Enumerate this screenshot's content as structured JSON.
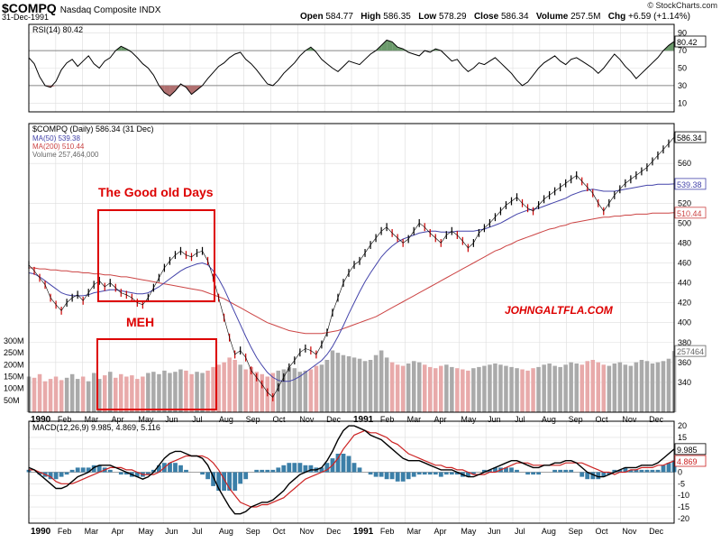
{
  "header": {
    "symbol": "$COMPQ",
    "exchange": "Nasdaq Composite  INDX",
    "date": "31-Dec-1991",
    "brand": "© StockCharts.com",
    "open_label": "Open",
    "open": "584.77",
    "high_label": "High",
    "high": "586.35",
    "low_label": "Low",
    "low": "578.29",
    "close_label": "Close",
    "close": "586.34",
    "volume_label": "Volume",
    "volume": "257.5M",
    "chg_label": "Chg",
    "chg": "+6.59 (+1.14%)"
  },
  "colors": {
    "price_up": "#000000",
    "price_down": "#cc0000",
    "ma50": "#4444aa",
    "ma200": "#cc4444",
    "rsi_over": "#6b9a6b",
    "rsi_under": "#b07070",
    "annotation": "#dd0000",
    "grid": "#dddddd",
    "volume_up": "#aaaaaa",
    "volume_down": "#e8aaaa",
    "macd_hist": "#3b7fa8"
  },
  "chart_data": [
    {
      "type": "line",
      "panel": "rsi",
      "title": "RSI(14) 80.42",
      "ylim": [
        0,
        100
      ],
      "y_ticks": [
        10,
        30,
        50,
        70,
        90
      ],
      "reference_lines": [
        30,
        70
      ],
      "last_value": "80.42",
      "series": [
        {
          "name": "RSI(14)",
          "values": [
            62,
            55,
            40,
            30,
            28,
            35,
            48,
            56,
            60,
            52,
            58,
            64,
            55,
            50,
            58,
            62,
            70,
            75,
            72,
            68,
            62,
            55,
            50,
            42,
            30,
            22,
            18,
            24,
            32,
            28,
            20,
            25,
            30,
            38,
            45,
            52,
            56,
            62,
            66,
            68,
            60,
            55,
            48,
            40,
            32,
            30,
            36,
            44,
            50,
            56,
            64,
            70,
            74,
            68,
            60,
            55,
            50,
            46,
            52,
            58,
            56,
            54,
            60,
            66,
            70,
            76,
            82,
            80,
            74,
            72,
            68,
            66,
            64,
            70,
            68,
            72,
            70,
            64,
            58,
            60,
            52,
            46,
            50,
            56,
            54,
            58,
            62,
            56,
            50,
            44,
            36,
            30,
            34,
            42,
            50,
            56,
            60,
            64,
            58,
            54,
            60,
            62,
            58,
            54,
            50,
            44,
            50,
            58,
            66,
            60,
            52,
            46,
            38,
            44,
            50,
            56,
            62,
            70,
            76,
            80.42
          ]
        }
      ]
    },
    {
      "type": "line",
      "panel": "price",
      "title": "$COMPQ (Daily) 586.34 (31 Dec)",
      "ylim": [
        310,
        600
      ],
      "y_ticks": [
        340,
        360,
        380,
        400,
        420,
        440,
        460,
        480,
        500,
        520,
        560
      ],
      "x_tick_labels": [
        "1990",
        "Feb",
        "Mar",
        "Apr",
        "May",
        "Jun",
        "Jul",
        "Aug",
        "Sep",
        "Oct",
        "Nov",
        "Dec",
        "1991",
        "Feb",
        "Mar",
        "Apr",
        "May",
        "Jun",
        "Jul",
        "Aug",
        "Sep",
        "Oct",
        "Nov",
        "Dec"
      ],
      "legend": [
        "MA(50) 539.38",
        "MA(200) 510.44",
        "Volume 257,464,000"
      ],
      "last_labels": {
        "close": "586.34",
        "ma50": "539.38",
        "ma200": "510.44",
        "volume": "257464"
      },
      "series": [
        {
          "name": "$COMPQ",
          "values": [
            458,
            452,
            445,
            438,
            425,
            418,
            412,
            420,
            425,
            428,
            422,
            430,
            438,
            442,
            436,
            440,
            435,
            430,
            428,
            425,
            420,
            418,
            425,
            435,
            445,
            455,
            462,
            468,
            472,
            468,
            466,
            470,
            472,
            462,
            445,
            425,
            405,
            385,
            368,
            372,
            365,
            352,
            345,
            338,
            330,
            325,
            335,
            345,
            355,
            362,
            370,
            374,
            372,
            368,
            378,
            390,
            410,
            425,
            440,
            450,
            458,
            462,
            470,
            478,
            485,
            492,
            496,
            490,
            485,
            480,
            484,
            492,
            500,
            496,
            490,
            485,
            480,
            488,
            492,
            488,
            482,
            475,
            480,
            490,
            495,
            500,
            506,
            512,
            518,
            522,
            526,
            520,
            515,
            512,
            518,
            524,
            528,
            532,
            536,
            540,
            544,
            548,
            542,
            536,
            530,
            520,
            512,
            520,
            528,
            534,
            540,
            544,
            548,
            552,
            556,
            562,
            568,
            574,
            580,
            586.34
          ]
        },
        {
          "name": "MA(50)",
          "values": [
            450,
            449,
            446,
            442,
            438,
            434,
            430,
            428,
            427,
            427,
            427,
            428,
            430,
            431,
            432,
            433,
            433,
            432,
            431,
            430,
            429,
            429,
            430,
            433,
            436,
            440,
            444,
            448,
            452,
            455,
            457,
            459,
            460,
            458,
            452,
            444,
            434,
            422,
            410,
            398,
            386,
            375,
            365,
            357,
            350,
            345,
            342,
            341,
            341,
            343,
            346,
            350,
            354,
            358,
            362,
            368,
            376,
            386,
            397,
            409,
            420,
            431,
            441,
            450,
            458,
            466,
            472,
            477,
            481,
            484,
            486,
            488,
            490,
            491,
            492,
            492,
            491,
            491,
            491,
            492,
            492,
            492,
            492,
            493,
            494,
            496,
            498,
            500,
            503,
            506,
            509,
            511,
            513,
            514,
            515,
            517,
            519,
            521,
            523,
            525,
            528,
            530,
            532,
            533,
            534,
            533,
            532,
            532,
            532,
            533,
            534,
            535,
            536,
            537,
            538,
            538,
            539,
            539,
            539,
            539.38
          ]
        },
        {
          "name": "MA(200)",
          "values": [
            455,
            455,
            454,
            454,
            453,
            453,
            452,
            452,
            451,
            451,
            450,
            450,
            449,
            449,
            448,
            448,
            447,
            446,
            446,
            445,
            444,
            443,
            442,
            441,
            440,
            439,
            438,
            437,
            436,
            435,
            434,
            433,
            432,
            430,
            428,
            426,
            424,
            421,
            418,
            415,
            412,
            409,
            406,
            403,
            400,
            398,
            396,
            394,
            392,
            391,
            390,
            389,
            389,
            389,
            389,
            390,
            391,
            392,
            394,
            396,
            398,
            400,
            402,
            404,
            406,
            409,
            412,
            415,
            418,
            421,
            424,
            427,
            430,
            433,
            436,
            439,
            442,
            445,
            448,
            451,
            454,
            457,
            460,
            463,
            466,
            469,
            472,
            474,
            477,
            479,
            482,
            484,
            486,
            488,
            490,
            492,
            494,
            495,
            497,
            498,
            500,
            501,
            502,
            503,
            504,
            505,
            506,
            506,
            507,
            507,
            508,
            508,
            509,
            509,
            509,
            510,
            510,
            510,
            510,
            510.44
          ]
        }
      ]
    },
    {
      "type": "bar",
      "panel": "volume",
      "y_ticks_millions": [
        50,
        100,
        150,
        200,
        250,
        300
      ],
      "ylim_millions": [
        0,
        330
      ],
      "values_millions": [
        150,
        145,
        160,
        130,
        140,
        150,
        135,
        145,
        160,
        140,
        150,
        130,
        165,
        140,
        155,
        170,
        145,
        160,
        150,
        155,
        140,
        150,
        165,
        170,
        160,
        175,
        165,
        170,
        180,
        175,
        160,
        170,
        165,
        175,
        190,
        200,
        210,
        230,
        220,
        200,
        180,
        190,
        170,
        160,
        150,
        165,
        175,
        180,
        190,
        185,
        170,
        175,
        180,
        195,
        200,
        220,
        260,
        250,
        240,
        235,
        230,
        225,
        215,
        220,
        240,
        260,
        230,
        210,
        200,
        195,
        205,
        215,
        210,
        200,
        190,
        185,
        195,
        200,
        190,
        185,
        180,
        175,
        185,
        190,
        195,
        200,
        205,
        200,
        195,
        190,
        185,
        180,
        175,
        185,
        190,
        200,
        205,
        195,
        190,
        200,
        210,
        205,
        200,
        215,
        220,
        210,
        200,
        195,
        205,
        210,
        200,
        195,
        210,
        220,
        215,
        205,
        210,
        215,
        225,
        257.5
      ]
    },
    {
      "type": "line",
      "panel": "macd",
      "title": "MACD(12,26,9) 9.985, 4.869, 5.116",
      "legend_values": [
        "9.985",
        "4.869",
        "5.116"
      ],
      "ylim": [
        -22,
        22
      ],
      "y_ticks": [
        -20,
        -15,
        -10,
        -5,
        0,
        5,
        10,
        15,
        20
      ],
      "last_labels": {
        "macd": "9.985",
        "signal": "4.869"
      },
      "series": [
        {
          "name": "MACD",
          "values": [
            2,
            1,
            -1,
            -3,
            -5,
            -7,
            -7,
            -6,
            -4,
            -2,
            -1,
            0,
            2,
            3,
            3,
            3,
            2,
            1,
            0,
            -1,
            -2,
            -3,
            -2,
            0,
            3,
            6,
            8,
            9,
            9,
            8,
            7,
            7,
            6,
            3,
            -2,
            -7,
            -11,
            -15,
            -18,
            -18,
            -17,
            -15,
            -14,
            -13,
            -13,
            -12,
            -10,
            -8,
            -5,
            -3,
            -1,
            0,
            1,
            1,
            2,
            5,
            9,
            14,
            18,
            20,
            20,
            19,
            18,
            16,
            15,
            14,
            12,
            10,
            8,
            6,
            5,
            5,
            5,
            4,
            3,
            2,
            1,
            1,
            1,
            0,
            -1,
            -2,
            -2,
            -1,
            0,
            1,
            2,
            3,
            4,
            5,
            5,
            4,
            3,
            2,
            2,
            3,
            3,
            4,
            4,
            5,
            5,
            4,
            2,
            0,
            -1,
            -2,
            -2,
            -1,
            0,
            1,
            2,
            2,
            2,
            3,
            3,
            3,
            4,
            6,
            8,
            9.985
          ]
        },
        {
          "name": "Signal",
          "values": [
            1,
            1,
            0,
            -1,
            -2,
            -4,
            -5,
            -5,
            -5,
            -4,
            -3,
            -2,
            -1,
            0,
            1,
            2,
            2,
            2,
            1,
            1,
            0,
            -1,
            -1,
            -1,
            0,
            2,
            4,
            5,
            6,
            7,
            7,
            7,
            7,
            6,
            4,
            1,
            -3,
            -7,
            -10,
            -13,
            -14,
            -15,
            -15,
            -14,
            -14,
            -13,
            -12,
            -11,
            -9,
            -7,
            -5,
            -3,
            -2,
            -1,
            0,
            1,
            3,
            6,
            10,
            13,
            16,
            17,
            18,
            17,
            17,
            16,
            15,
            13,
            12,
            10,
            8,
            7,
            6,
            5,
            4,
            3,
            3,
            2,
            2,
            1,
            1,
            0,
            -1,
            -1,
            -1,
            0,
            0,
            1,
            2,
            3,
            4,
            4,
            4,
            3,
            3,
            3,
            3,
            3,
            3,
            4,
            4,
            4,
            4,
            3,
            2,
            1,
            0,
            0,
            -1,
            0,
            0,
            1,
            1,
            2,
            2,
            2,
            3,
            3,
            4,
            4.869
          ]
        }
      ]
    }
  ],
  "annotations": {
    "good_old_days": "The Good old Days",
    "meh": "MEH",
    "watermark": "JOHNGALTFLA.COM"
  }
}
